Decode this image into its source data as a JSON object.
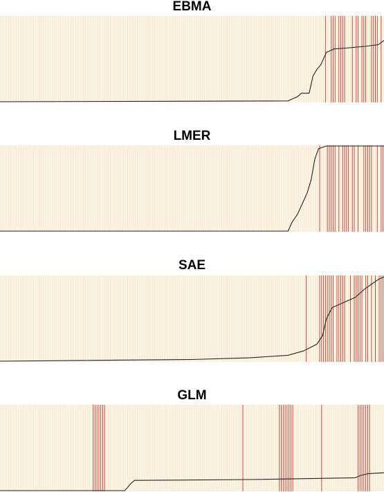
{
  "colors": {
    "background": "#fdf6e8",
    "stripe_light": "#f5e4c8",
    "stripe_event": "#c0483a",
    "curve": "#222222"
  },
  "chart_data": [
    {
      "type": "line",
      "title": "EBMA",
      "n": 200,
      "ylim": [
        0,
        1
      ],
      "events": [
        169,
        172,
        173,
        174,
        176,
        177,
        178,
        179,
        183,
        185,
        186,
        188,
        189,
        190,
        193,
        194,
        195,
        196,
        198
      ],
      "curve": [
        [
          0,
          0.0
        ],
        [
          150,
          0.01
        ],
        [
          152,
          0.03
        ],
        [
          155,
          0.06
        ],
        [
          157,
          0.1
        ],
        [
          161,
          0.1
        ],
        [
          163,
          0.3
        ],
        [
          165,
          0.38
        ],
        [
          167,
          0.43
        ],
        [
          170,
          0.58
        ],
        [
          172,
          0.6
        ],
        [
          174,
          0.62
        ],
        [
          180,
          0.63
        ],
        [
          190,
          0.65
        ],
        [
          197,
          0.67
        ],
        [
          200,
          0.72
        ]
      ]
    },
    {
      "type": "line",
      "title": "LMER",
      "n": 200,
      "ylim": [
        0,
        1
      ],
      "events": [
        166,
        170,
        171,
        172,
        173,
        174,
        176,
        178,
        179,
        180,
        181,
        183,
        184,
        186,
        189,
        190,
        191,
        192,
        193,
        196,
        198,
        199
      ],
      "curve": [
        [
          0,
          0.0
        ],
        [
          150,
          0.0
        ],
        [
          152,
          0.1
        ],
        [
          155,
          0.2
        ],
        [
          157,
          0.3
        ],
        [
          160,
          0.45
        ],
        [
          162,
          0.6
        ],
        [
          164,
          0.85
        ],
        [
          166,
          0.97
        ],
        [
          170,
          1.0
        ],
        [
          200,
          1.0
        ]
      ]
    },
    {
      "type": "line",
      "title": "SAE",
      "n": 200,
      "ylim": [
        0,
        1
      ],
      "events": [
        159,
        166,
        167,
        168,
        169,
        170,
        171,
        172,
        173,
        175,
        176,
        177,
        178,
        179,
        182,
        184,
        185,
        186,
        187,
        188,
        190,
        191,
        193,
        195,
        197,
        198,
        199
      ],
      "curve": [
        [
          0,
          0.0
        ],
        [
          100,
          0.02
        ],
        [
          130,
          0.04
        ],
        [
          150,
          0.07
        ],
        [
          158,
          0.12
        ],
        [
          165,
          0.2
        ],
        [
          168,
          0.3
        ],
        [
          170,
          0.5
        ],
        [
          173,
          0.63
        ],
        [
          178,
          0.68
        ],
        [
          185,
          0.75
        ],
        [
          190,
          0.85
        ],
        [
          197,
          0.96
        ],
        [
          200,
          0.99
        ]
      ]
    },
    {
      "type": "line",
      "title": "GLM",
      "n": 200,
      "ylim": [
        0,
        1
      ],
      "events": [
        48,
        49,
        50,
        51,
        52,
        53,
        54,
        126,
        145,
        146,
        147,
        148,
        149,
        150,
        151,
        152,
        167,
        186,
        187,
        188,
        189,
        190,
        191,
        192
      ],
      "curve": [
        [
          0,
          0.0
        ],
        [
          65,
          0.0
        ],
        [
          68,
          0.08
        ],
        [
          70,
          0.12
        ],
        [
          130,
          0.13
        ],
        [
          185,
          0.15
        ],
        [
          188,
          0.18
        ],
        [
          192,
          0.2
        ],
        [
          200,
          0.21
        ]
      ]
    }
  ]
}
